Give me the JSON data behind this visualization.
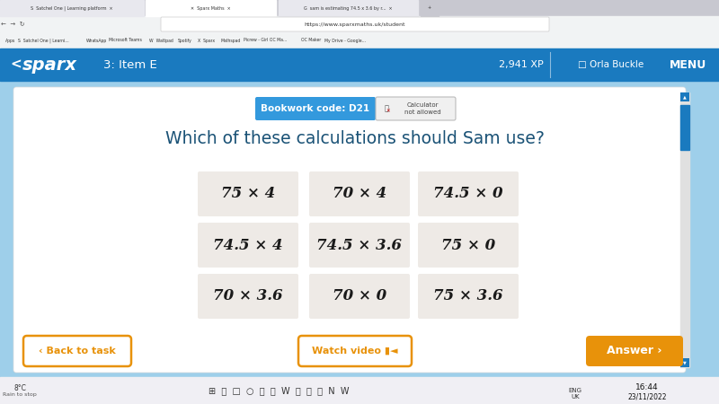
{
  "title": "Which of these calculations should Sam use?",
  "title_color": "#1a5276",
  "title_fontsize": 13.5,
  "bookwork_code": "Bookwork code: D21",
  "calc_text": "Calculator\nnot allowed",
  "outer_bg": "#9ecfea",
  "panel_bg": "#f5f5f5",
  "white_bg": "#ffffff",
  "nav_bg": "#1a7abf",
  "grid_options": [
    [
      "75 × 4",
      "70 × 4",
      "74.5 × 0"
    ],
    [
      "74.5 × 4",
      "74.5 × 3.6",
      "75 × 0"
    ],
    [
      "70 × 3.6",
      "70 × 0",
      "75 × 3.6"
    ]
  ],
  "cell_bg": "#eeeae6",
  "cell_text_color": "#1a1a1a",
  "cell_fontsize": 12,
  "back_btn_text": "‹ Back to task",
  "video_btn_text": "Watch video ▮◄",
  "answer_btn_text": "Answer ›",
  "btn_color": "#e8920a",
  "bw_badge_color": "#3399dd",
  "nav_text": "3: Item E",
  "xp_text": "2,941 XP",
  "user_text": "Orla Buckle",
  "menu_text": "MENU",
  "time_text": "16:44",
  "date_text": "23/11/2022",
  "tab_bg": "#dee1e6",
  "tab_active_bg": "#ffffff",
  "addr_bar_bg": "#f1f3f4",
  "taskbar_bg": "#f0eff4"
}
